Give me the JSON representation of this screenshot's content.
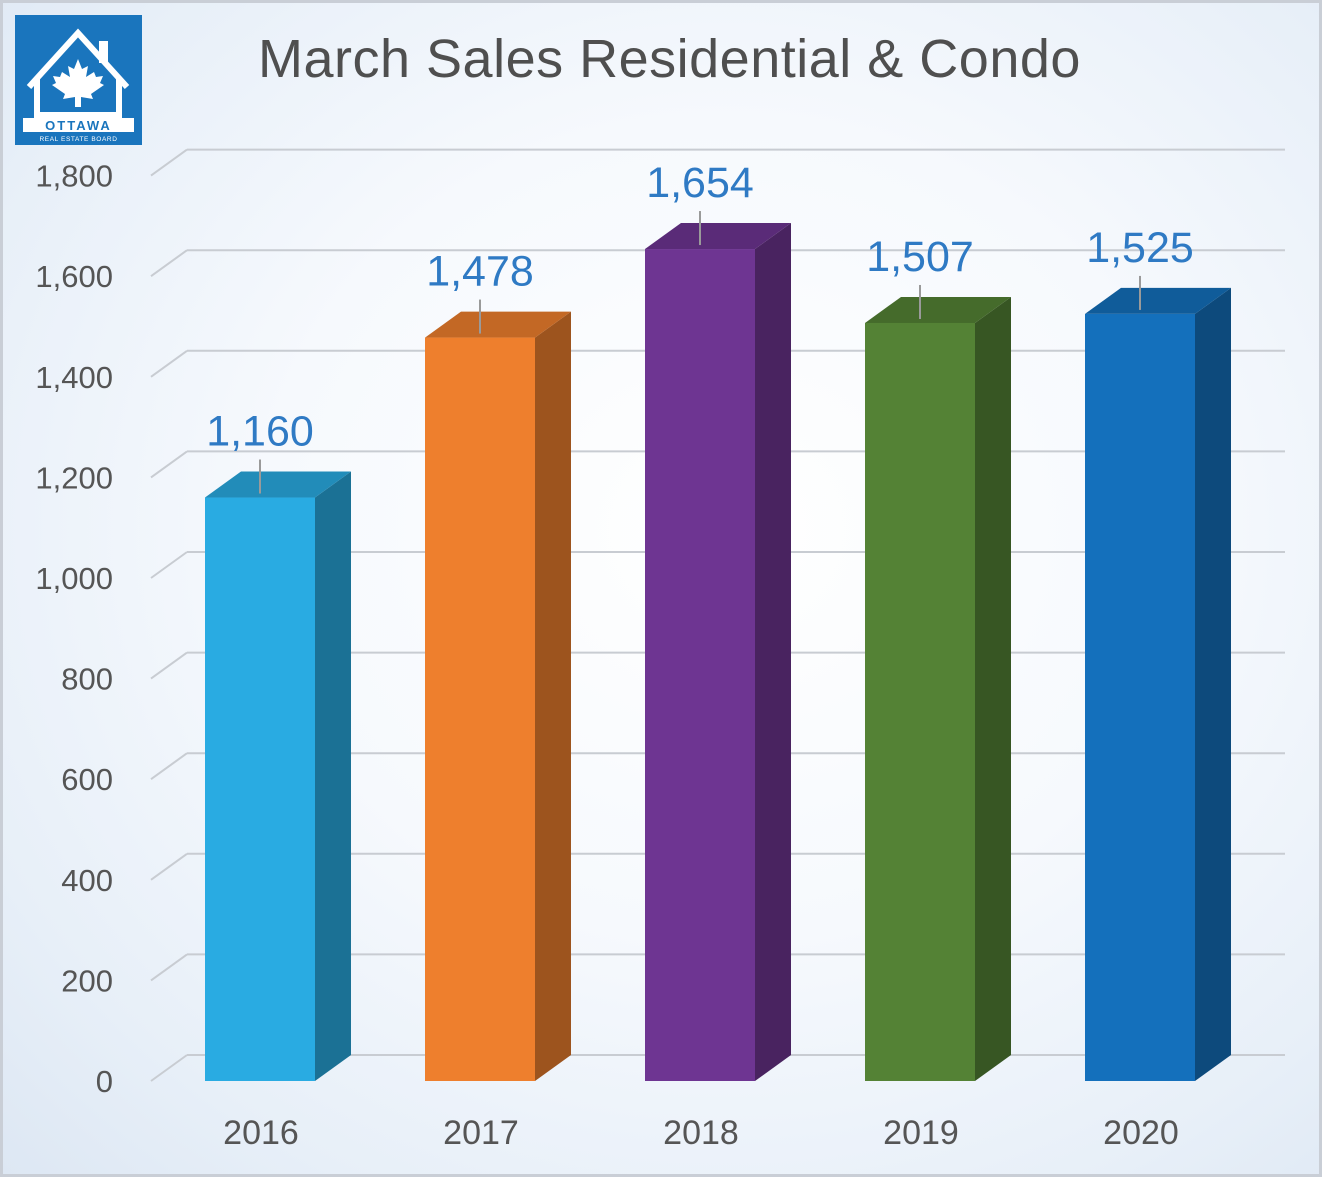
{
  "logo": {
    "icon": "ottawa-real-estate-board-logo",
    "wordmark": "OTTAWA",
    "subtext": "REAL ESTATE BOARD",
    "color": "#1a75bd"
  },
  "chart_data": {
    "type": "bar",
    "title": "March Sales Residential & Condo",
    "xlabel": "",
    "ylabel": "",
    "categories": [
      "2016",
      "2017",
      "2018",
      "2019",
      "2020"
    ],
    "values": [
      1160,
      1478,
      1654,
      1507,
      1525
    ],
    "value_labels": [
      "1,160",
      "1,478",
      "1,654",
      "1,507",
      "1,525"
    ],
    "ylim": [
      0,
      1800
    ],
    "yticks": [
      0,
      200,
      400,
      600,
      800,
      1000,
      1200,
      1400,
      1600,
      1800
    ],
    "ytick_labels": [
      "0",
      "200",
      "400",
      "600",
      "800",
      "1,000",
      "1,200",
      "1,400",
      "1,600",
      "1,800"
    ],
    "bar_colors": [
      "#29abe2",
      "#ee7f2d",
      "#6e3592",
      "#548235",
      "#1470bc"
    ],
    "style": "3d-column",
    "grid": true,
    "legend": "none"
  }
}
